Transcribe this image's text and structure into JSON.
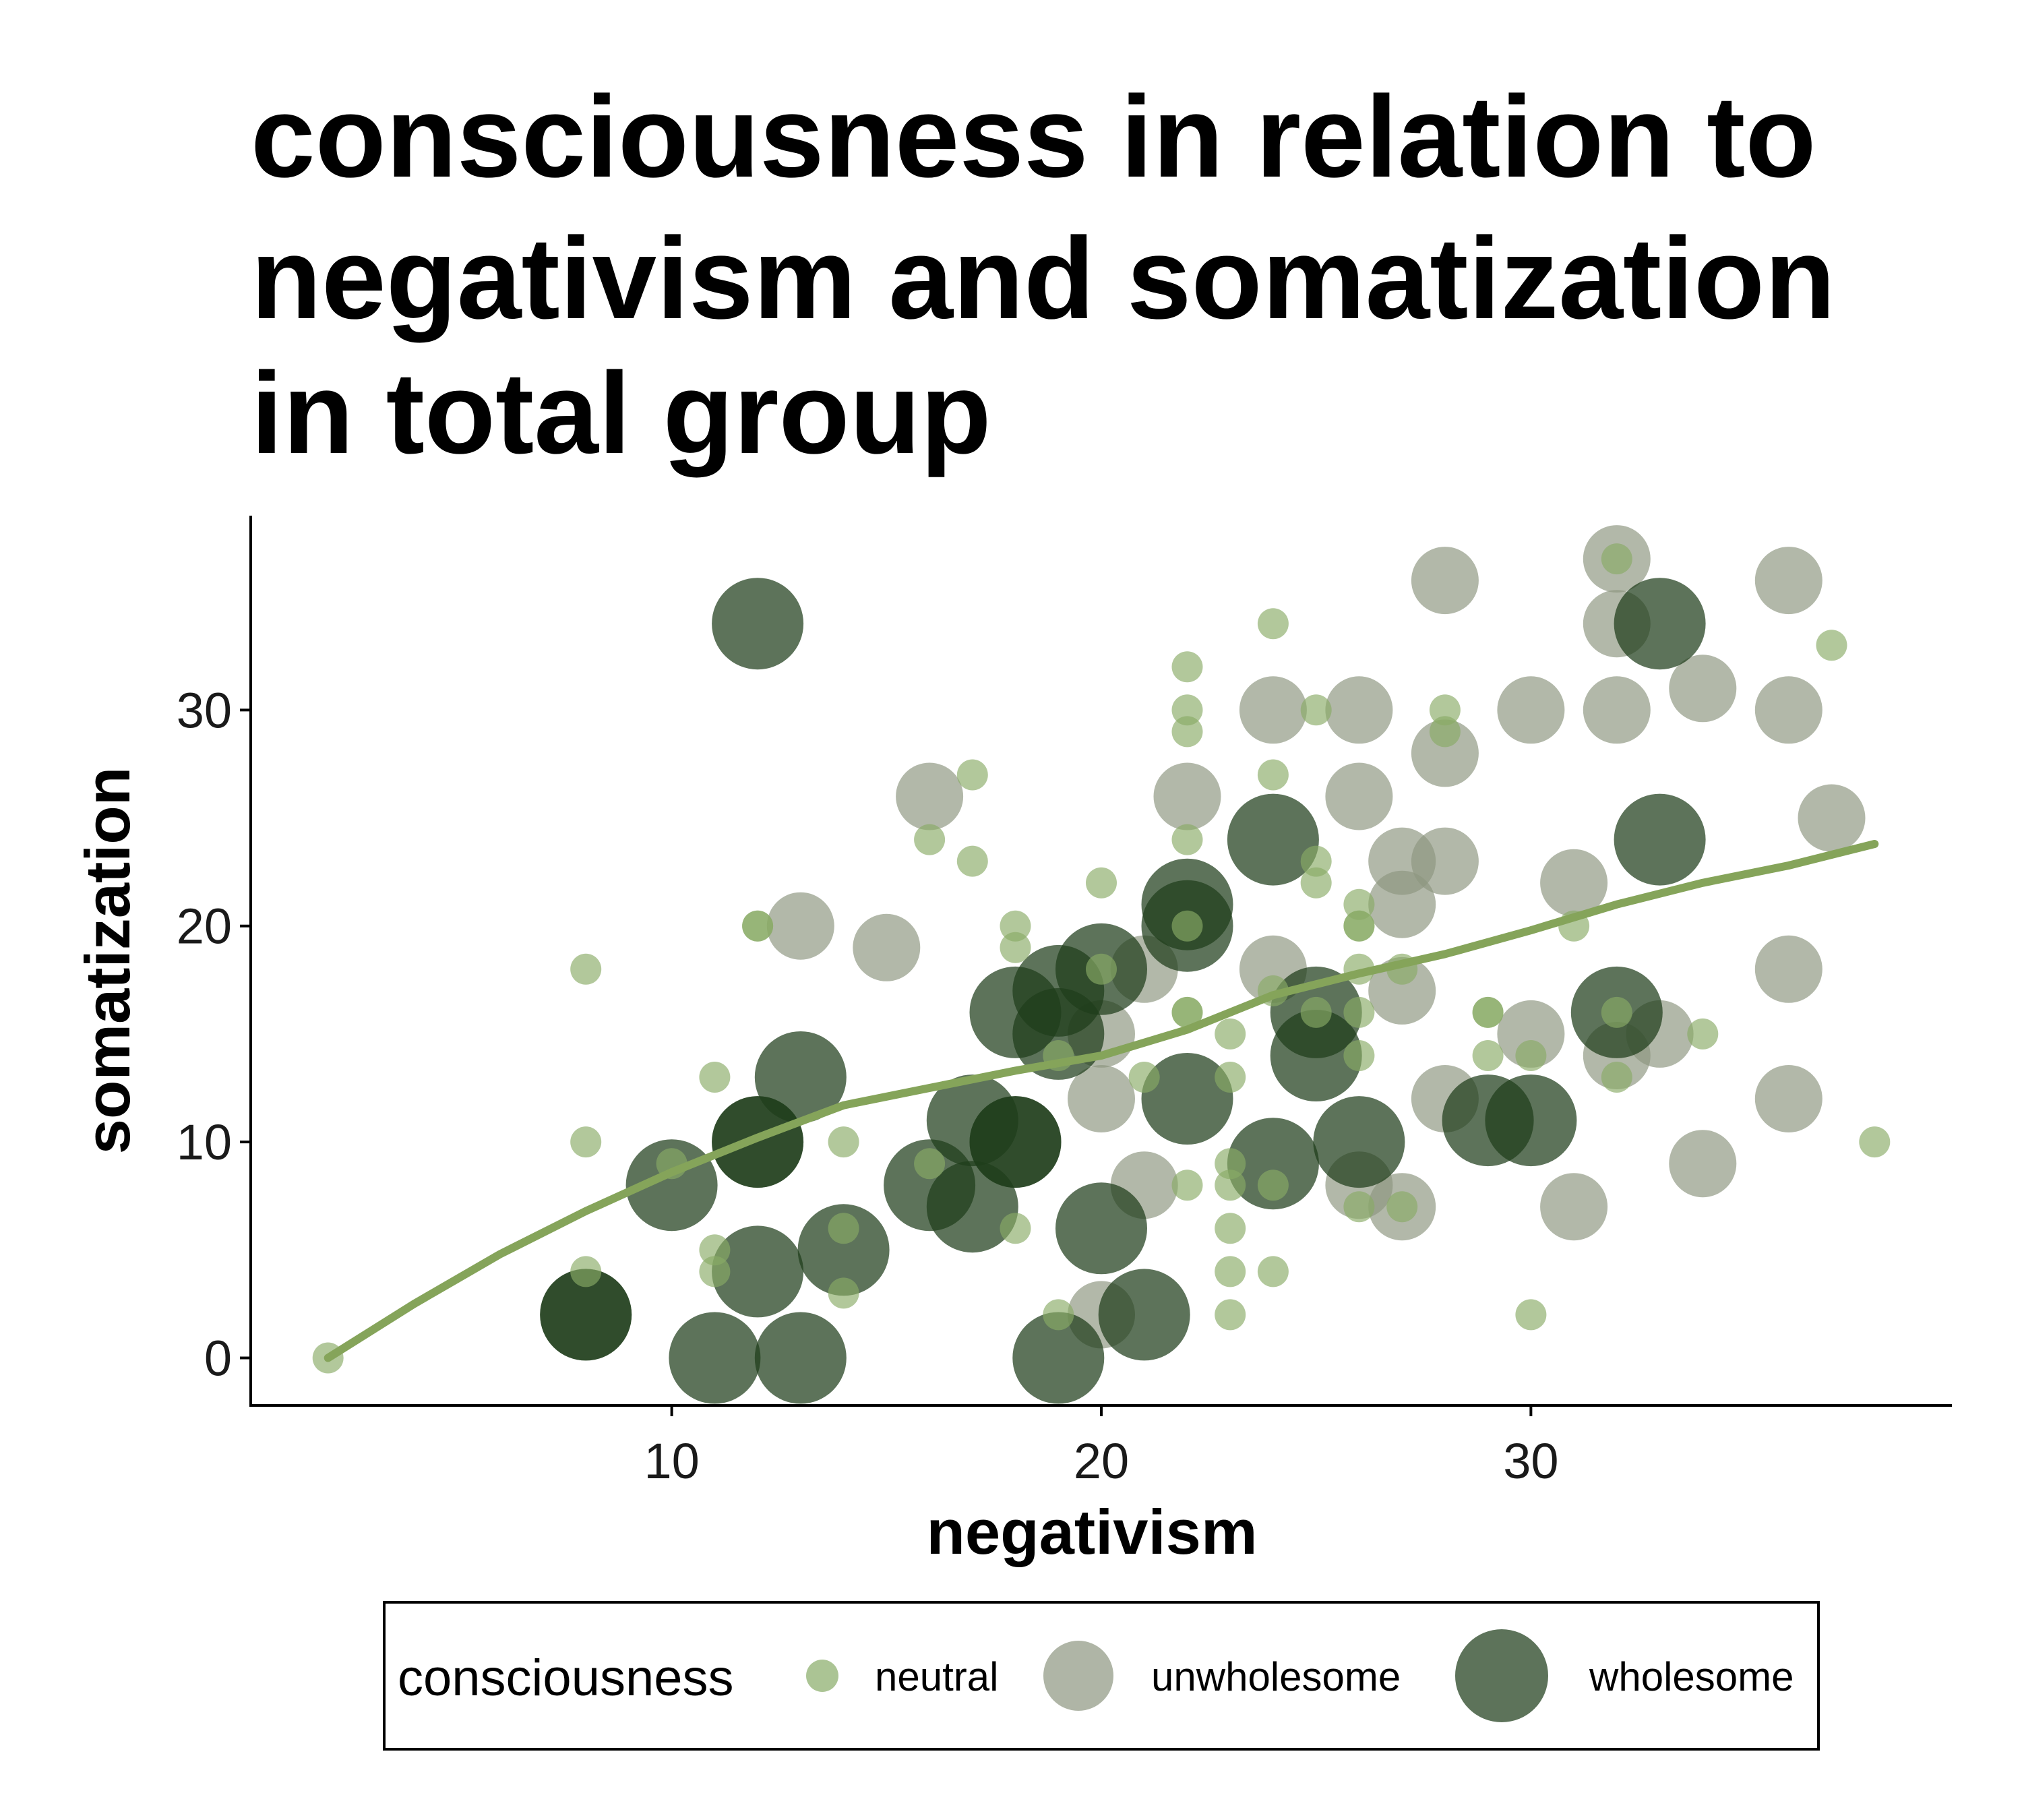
{
  "chart_data": {
    "type": "scatter",
    "title": [
      "consciousness in relation to",
      "negativism and somatization",
      "in total group"
    ],
    "xlabel": "negativism",
    "ylabel": "somatization",
    "xlim": [
      0.2,
      39.8
    ],
    "ylim": [
      -2.2,
      39
    ],
    "xticks": [
      10,
      20,
      30
    ],
    "yticks": [
      0,
      10,
      20,
      30
    ],
    "grid": false,
    "legend": {
      "title": "consciousness",
      "position": "bottom",
      "entries": [
        "neutral",
        "unwholesome",
        "wholesome"
      ]
    },
    "colors": {
      "neutral": "#88ab66",
      "unwholesome": "#8d9680",
      "wholesome": "#1e3d1a",
      "trend": "#85a45a",
      "axis": "#000000"
    },
    "series": [
      {
        "name": "neutral",
        "points": [
          [
            2,
            0
          ],
          [
            8,
            18
          ],
          [
            8,
            10
          ],
          [
            8,
            4
          ],
          [
            10,
            9
          ],
          [
            11,
            13
          ],
          [
            11,
            5
          ],
          [
            11,
            4
          ],
          [
            12,
            20
          ],
          [
            12,
            20
          ],
          [
            14,
            10
          ],
          [
            14,
            6
          ],
          [
            14,
            3
          ],
          [
            16,
            9
          ],
          [
            16,
            24
          ],
          [
            17,
            27
          ],
          [
            17,
            23
          ],
          [
            18,
            20
          ],
          [
            18,
            19
          ],
          [
            18,
            6
          ],
          [
            19,
            14
          ],
          [
            19,
            2
          ],
          [
            20,
            22
          ],
          [
            20,
            18
          ],
          [
            21,
            13
          ],
          [
            22,
            32
          ],
          [
            22,
            30
          ],
          [
            22,
            29
          ],
          [
            22,
            24
          ],
          [
            22,
            20
          ],
          [
            22,
            16
          ],
          [
            22,
            16
          ],
          [
            22,
            8
          ],
          [
            23,
            15
          ],
          [
            23,
            13
          ],
          [
            23,
            9
          ],
          [
            23,
            8
          ],
          [
            23,
            6
          ],
          [
            23,
            4
          ],
          [
            23,
            2
          ],
          [
            24,
            34
          ],
          [
            24,
            27
          ],
          [
            24,
            17
          ],
          [
            24,
            8
          ],
          [
            24,
            4
          ],
          [
            25,
            30
          ],
          [
            25,
            23
          ],
          [
            25,
            22
          ],
          [
            25,
            16
          ],
          [
            26,
            21
          ],
          [
            26,
            20
          ],
          [
            26,
            20
          ],
          [
            26,
            18
          ],
          [
            26,
            16
          ],
          [
            26,
            14
          ],
          [
            26,
            7
          ],
          [
            27,
            18
          ],
          [
            27,
            7
          ],
          [
            28,
            30
          ],
          [
            28,
            29
          ],
          [
            29,
            16
          ],
          [
            29,
            16
          ],
          [
            29,
            14
          ],
          [
            30,
            14
          ],
          [
            30,
            2
          ],
          [
            31,
            20
          ],
          [
            32,
            37
          ],
          [
            32,
            16
          ],
          [
            32,
            13
          ],
          [
            34,
            15
          ],
          [
            37,
            33
          ],
          [
            38,
            10
          ]
        ]
      },
      {
        "name": "unwholesome",
        "points": [
          [
            13,
            20
          ],
          [
            15,
            19
          ],
          [
            16,
            26
          ],
          [
            20,
            15
          ],
          [
            20,
            12
          ],
          [
            20,
            2
          ],
          [
            21,
            18
          ],
          [
            21,
            8
          ],
          [
            22,
            26
          ],
          [
            24,
            30
          ],
          [
            24,
            18
          ],
          [
            26,
            30
          ],
          [
            26,
            26
          ],
          [
            26,
            8
          ],
          [
            27,
            23
          ],
          [
            27,
            21
          ],
          [
            27,
            17
          ],
          [
            27,
            7
          ],
          [
            28,
            36
          ],
          [
            28,
            28
          ],
          [
            28,
            23
          ],
          [
            28,
            12
          ],
          [
            30,
            30
          ],
          [
            30,
            15
          ],
          [
            31,
            22
          ],
          [
            31,
            7
          ],
          [
            32,
            37
          ],
          [
            32,
            34
          ],
          [
            32,
            30
          ],
          [
            32,
            14
          ],
          [
            33,
            15
          ],
          [
            34,
            31
          ],
          [
            34,
            9
          ],
          [
            36,
            36
          ],
          [
            36,
            30
          ],
          [
            36,
            18
          ],
          [
            36,
            12
          ],
          [
            37,
            25
          ]
        ]
      },
      {
        "name": "wholesome",
        "points": [
          [
            8,
            2
          ],
          [
            8,
            2
          ],
          [
            10,
            8
          ],
          [
            11,
            0
          ],
          [
            12,
            34
          ],
          [
            12,
            10
          ],
          [
            12,
            10
          ],
          [
            12,
            4
          ],
          [
            13,
            13
          ],
          [
            13,
            0
          ],
          [
            14,
            5
          ],
          [
            16,
            8
          ],
          [
            17,
            11
          ],
          [
            17,
            7
          ],
          [
            18,
            16
          ],
          [
            18,
            10
          ],
          [
            18,
            10
          ],
          [
            19,
            17
          ],
          [
            19,
            15
          ],
          [
            19,
            0
          ],
          [
            20,
            18
          ],
          [
            20,
            6
          ],
          [
            21,
            2
          ],
          [
            22,
            21
          ],
          [
            22,
            20
          ],
          [
            22,
            12
          ],
          [
            24,
            24
          ],
          [
            24,
            9
          ],
          [
            25,
            16
          ],
          [
            25,
            14
          ],
          [
            26,
            10
          ],
          [
            29,
            11
          ],
          [
            30,
            11
          ],
          [
            32,
            16
          ],
          [
            33,
            34
          ],
          [
            33,
            24
          ]
        ]
      }
    ],
    "trend_line": {
      "x": [
        2,
        4,
        6,
        8,
        10,
        12,
        14,
        16,
        18,
        20,
        22,
        24,
        26,
        28,
        30,
        32,
        34,
        36,
        38
      ],
      "y": [
        0,
        2.5,
        4.8,
        6.8,
        8.6,
        10.2,
        11.7,
        12.5,
        13.3,
        14,
        15.2,
        16.8,
        17.8,
        18.7,
        19.8,
        21,
        22,
        22.8,
        23.8
      ]
    }
  }
}
